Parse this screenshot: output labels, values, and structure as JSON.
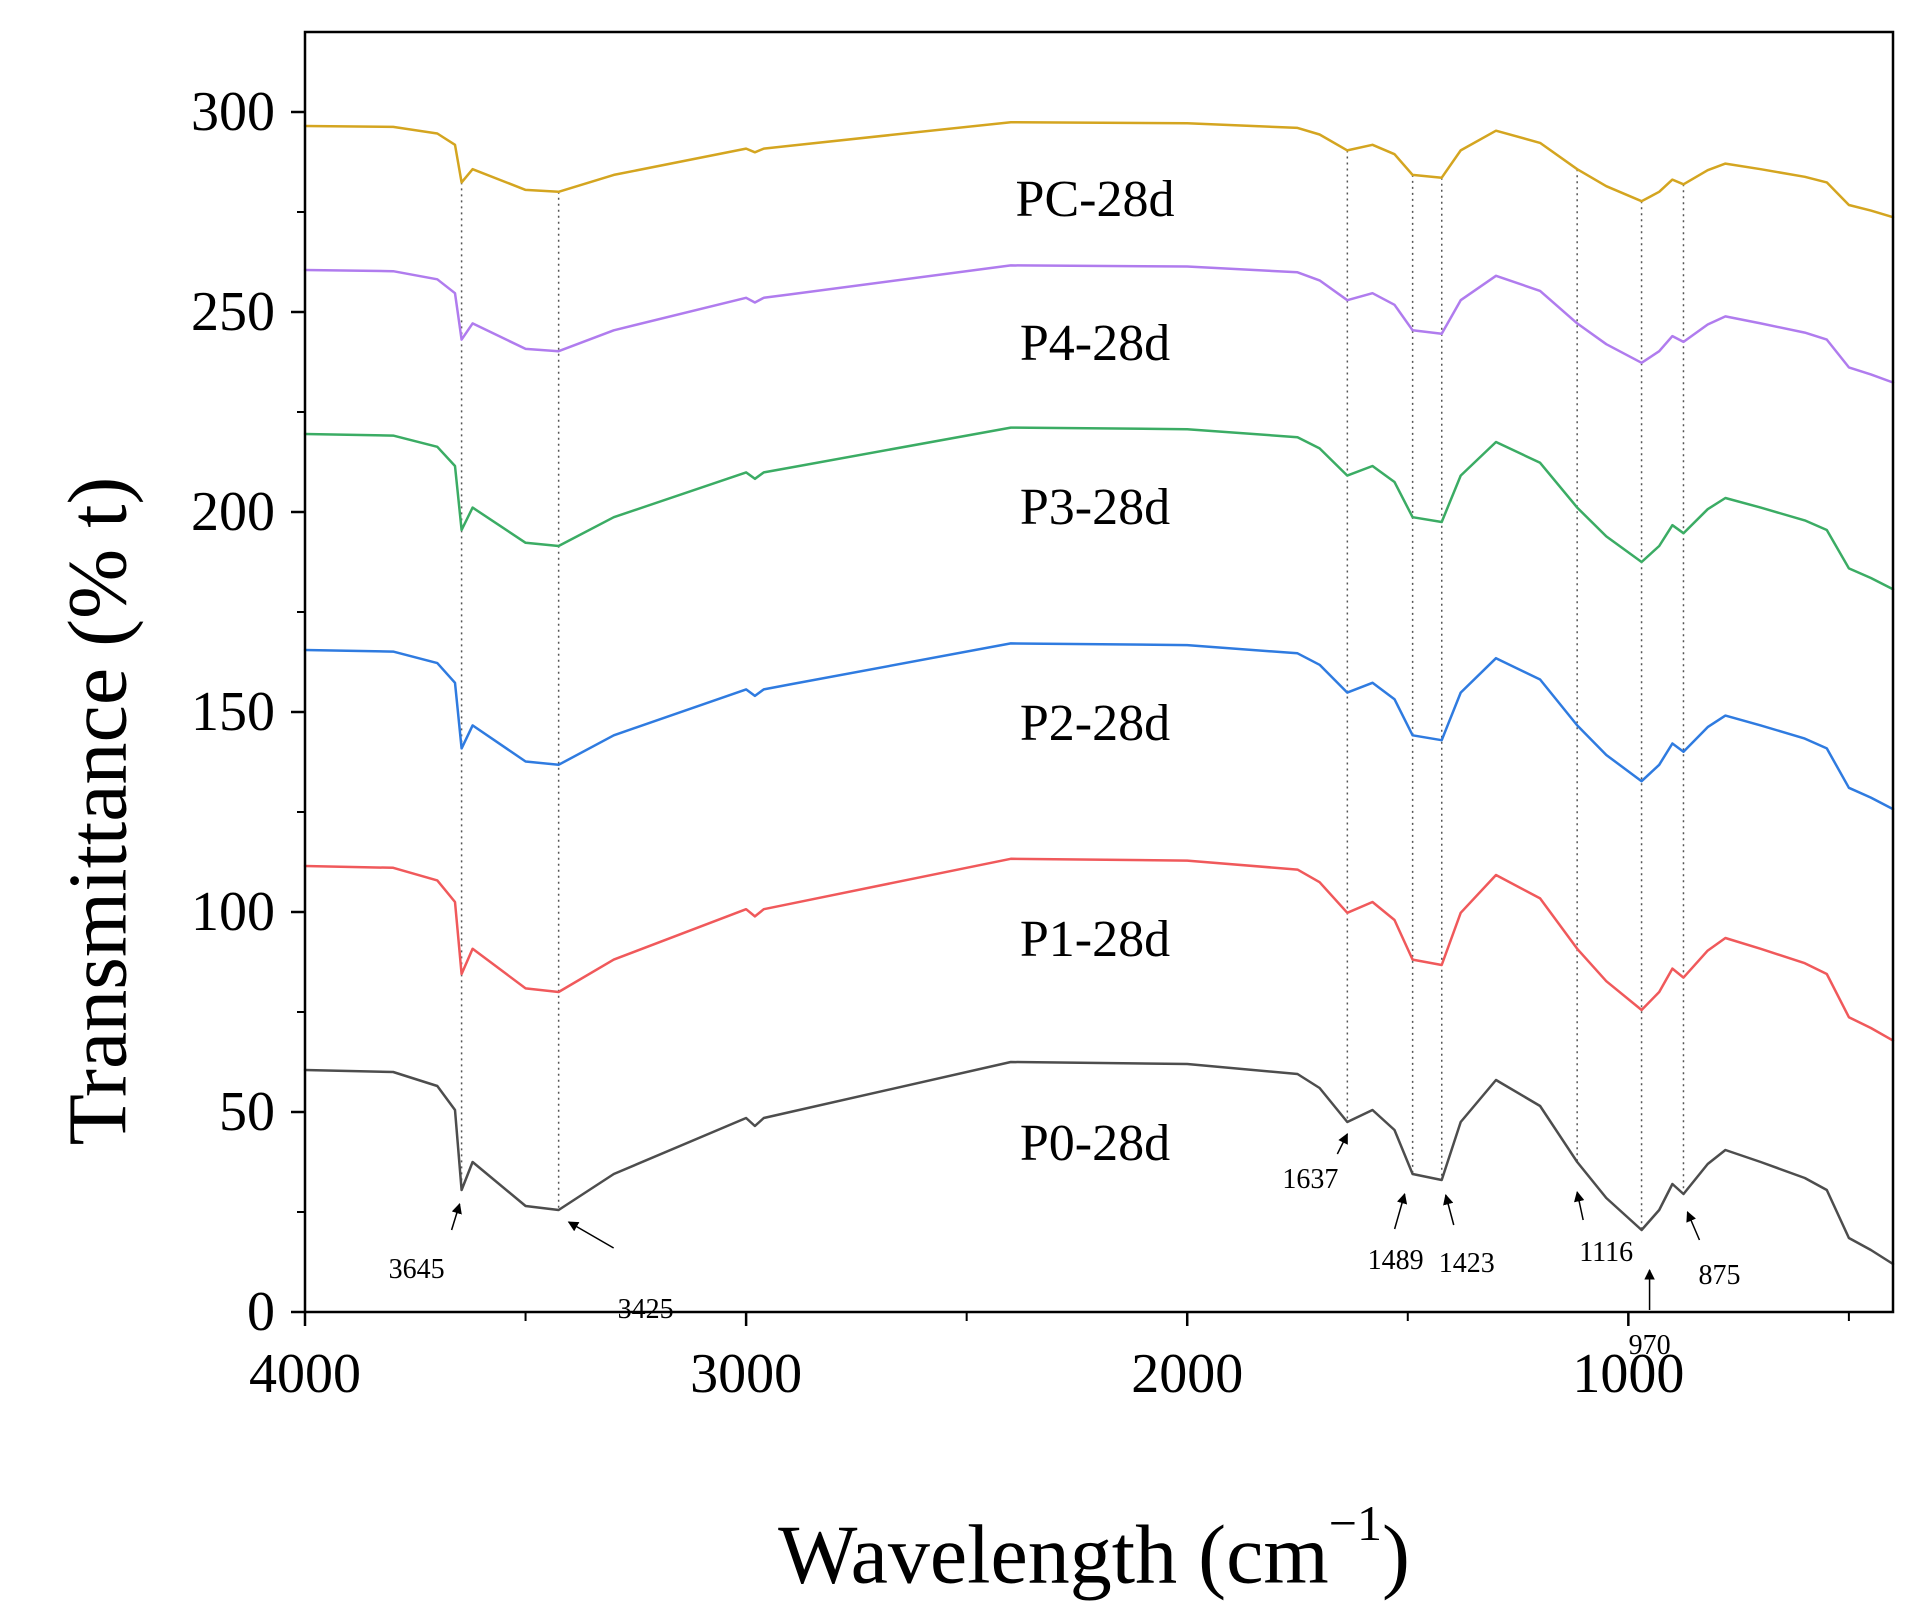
{
  "chart_data": {
    "type": "line",
    "title": "",
    "ylabel": "Transmittance (% t)",
    "xlabel": {
      "base": "Wavelength (cm",
      "exponent": "−1",
      "close": ")"
    },
    "xlim": [
      4000,
      400
    ],
    "ylim": [
      0,
      320
    ],
    "x_ticks": [
      "4000",
      "3000",
      "2000",
      "1000"
    ],
    "y_ticks": [
      "0",
      "50",
      "100",
      "150",
      "200",
      "250",
      "300"
    ],
    "grid": false,
    "peak_lines": [
      3645,
      3425,
      1637,
      1489,
      1423,
      1116,
      970,
      875
    ],
    "annotations": [
      {
        "label": "3645",
        "x": 3645
      },
      {
        "label": "3425",
        "x": 3425
      },
      {
        "label": "1637",
        "x": 1637
      },
      {
        "label": "1489",
        "x": 1489
      },
      {
        "label": "1423",
        "x": 1423
      },
      {
        "label": "1116",
        "x": 1116
      },
      {
        "label": "970",
        "x": 970
      },
      {
        "label": "875",
        "x": 875
      }
    ],
    "x_points": [
      4000,
      3800,
      3700,
      3660,
      3645,
      3620,
      3500,
      3425,
      3300,
      3000,
      2980,
      2960,
      2900,
      2400,
      2000,
      1750,
      1700,
      1637,
      1580,
      1530,
      1489,
      1423,
      1380,
      1300,
      1200,
      1116,
      1050,
      970,
      930,
      900,
      875,
      820,
      780,
      700,
      600,
      550,
      500,
      450,
      400
    ],
    "base_y": [
      0,
      -0.5,
      -4,
      -10,
      -30,
      -23,
      -34,
      -35,
      -26,
      -12,
      -14,
      -12,
      -10.5,
      2,
      1.5,
      -1,
      -4.5,
      -13,
      -10,
      -15,
      -26,
      -27.5,
      -13,
      -2.5,
      -9,
      -23,
      -32,
      -40,
      -35,
      -28.5,
      -31,
      -23.5,
      -20,
      -23,
      -27,
      -30,
      -42,
      -45,
      -48.5
    ],
    "series": [
      {
        "name": "P0-28d",
        "color": "#4d4d4d",
        "offset": 60.5,
        "scale": 1.0
      },
      {
        "name": "P1-28d",
        "color": "#f0595b",
        "offset": 111.5,
        "scale": 0.9
      },
      {
        "name": "P2-28d",
        "color": "#2f7be0",
        "offset": 165.5,
        "scale": 0.82
      },
      {
        "name": "P3-28d",
        "color": "#3bac64",
        "offset": 219.5,
        "scale": 0.8
      },
      {
        "name": "P4-28d",
        "color": "#b07cee",
        "offset": 260.5,
        "scale": 0.58
      },
      {
        "name": "PC-28d",
        "color": "#d4a520",
        "offset": 296.5,
        "scale": 0.47
      }
    ]
  }
}
